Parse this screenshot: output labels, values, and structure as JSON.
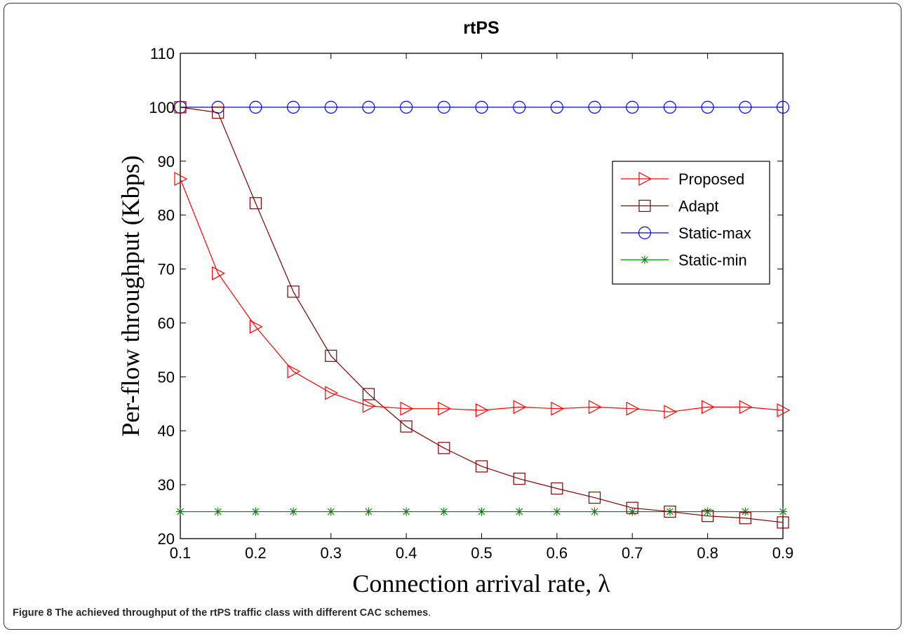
{
  "chart_data": {
    "type": "line",
    "title": "rtPS",
    "xlabel": "Connection arrival rate, λ",
    "ylabel": "Per-flow throughput (Kbps)",
    "xlim": [
      0.1,
      0.9
    ],
    "ylim": [
      20,
      110
    ],
    "x_ticks": [
      "0.1",
      "0.2",
      "0.3",
      "0.4",
      "0.5",
      "0.6",
      "0.7",
      "0.8",
      "0.9"
    ],
    "y_ticks": [
      "20",
      "30",
      "40",
      "50",
      "60",
      "70",
      "80",
      "90",
      "100",
      "110"
    ],
    "grid": false,
    "legend_position": "right, upper-middle",
    "x": [
      0.1,
      0.15,
      0.2,
      0.25,
      0.3,
      0.35,
      0.4,
      0.45,
      0.5,
      0.55,
      0.6,
      0.65,
      0.7,
      0.75,
      0.8,
      0.85,
      0.9
    ],
    "series": [
      {
        "name": "Proposed",
        "color": "#ff0000",
        "marker": "triangle-right",
        "values": [
          86.7,
          69.2,
          59.3,
          51.0,
          47.0,
          44.6,
          44.1,
          44.1,
          43.8,
          44.4,
          44.1,
          44.4,
          44.1,
          43.5,
          44.4,
          44.4,
          43.8
        ]
      },
      {
        "name": "Adapt",
        "color": "#800000",
        "marker": "square",
        "values": [
          100.0,
          99.0,
          82.2,
          65.8,
          53.9,
          46.8,
          40.8,
          36.8,
          33.4,
          31.1,
          29.3,
          27.6,
          25.7,
          25.0,
          24.2,
          23.8,
          23.0
        ]
      },
      {
        "name": "Static-max",
        "color": "#0000ff",
        "marker": "circle",
        "values": [
          100,
          100,
          100,
          100,
          100,
          100,
          100,
          100,
          100,
          100,
          100,
          100,
          100,
          100,
          100,
          100,
          100
        ]
      },
      {
        "name": "Static-min",
        "color": "#008000",
        "marker": "star",
        "values": [
          25,
          25,
          25,
          25,
          25,
          25,
          25,
          25,
          25,
          25,
          25,
          25,
          25,
          25,
          25,
          25,
          25
        ]
      }
    ]
  },
  "caption": {
    "label": "Figure 8",
    "text": "The achieved throughput of the rtPS traffic class with different CAC schemes",
    "end": "."
  }
}
